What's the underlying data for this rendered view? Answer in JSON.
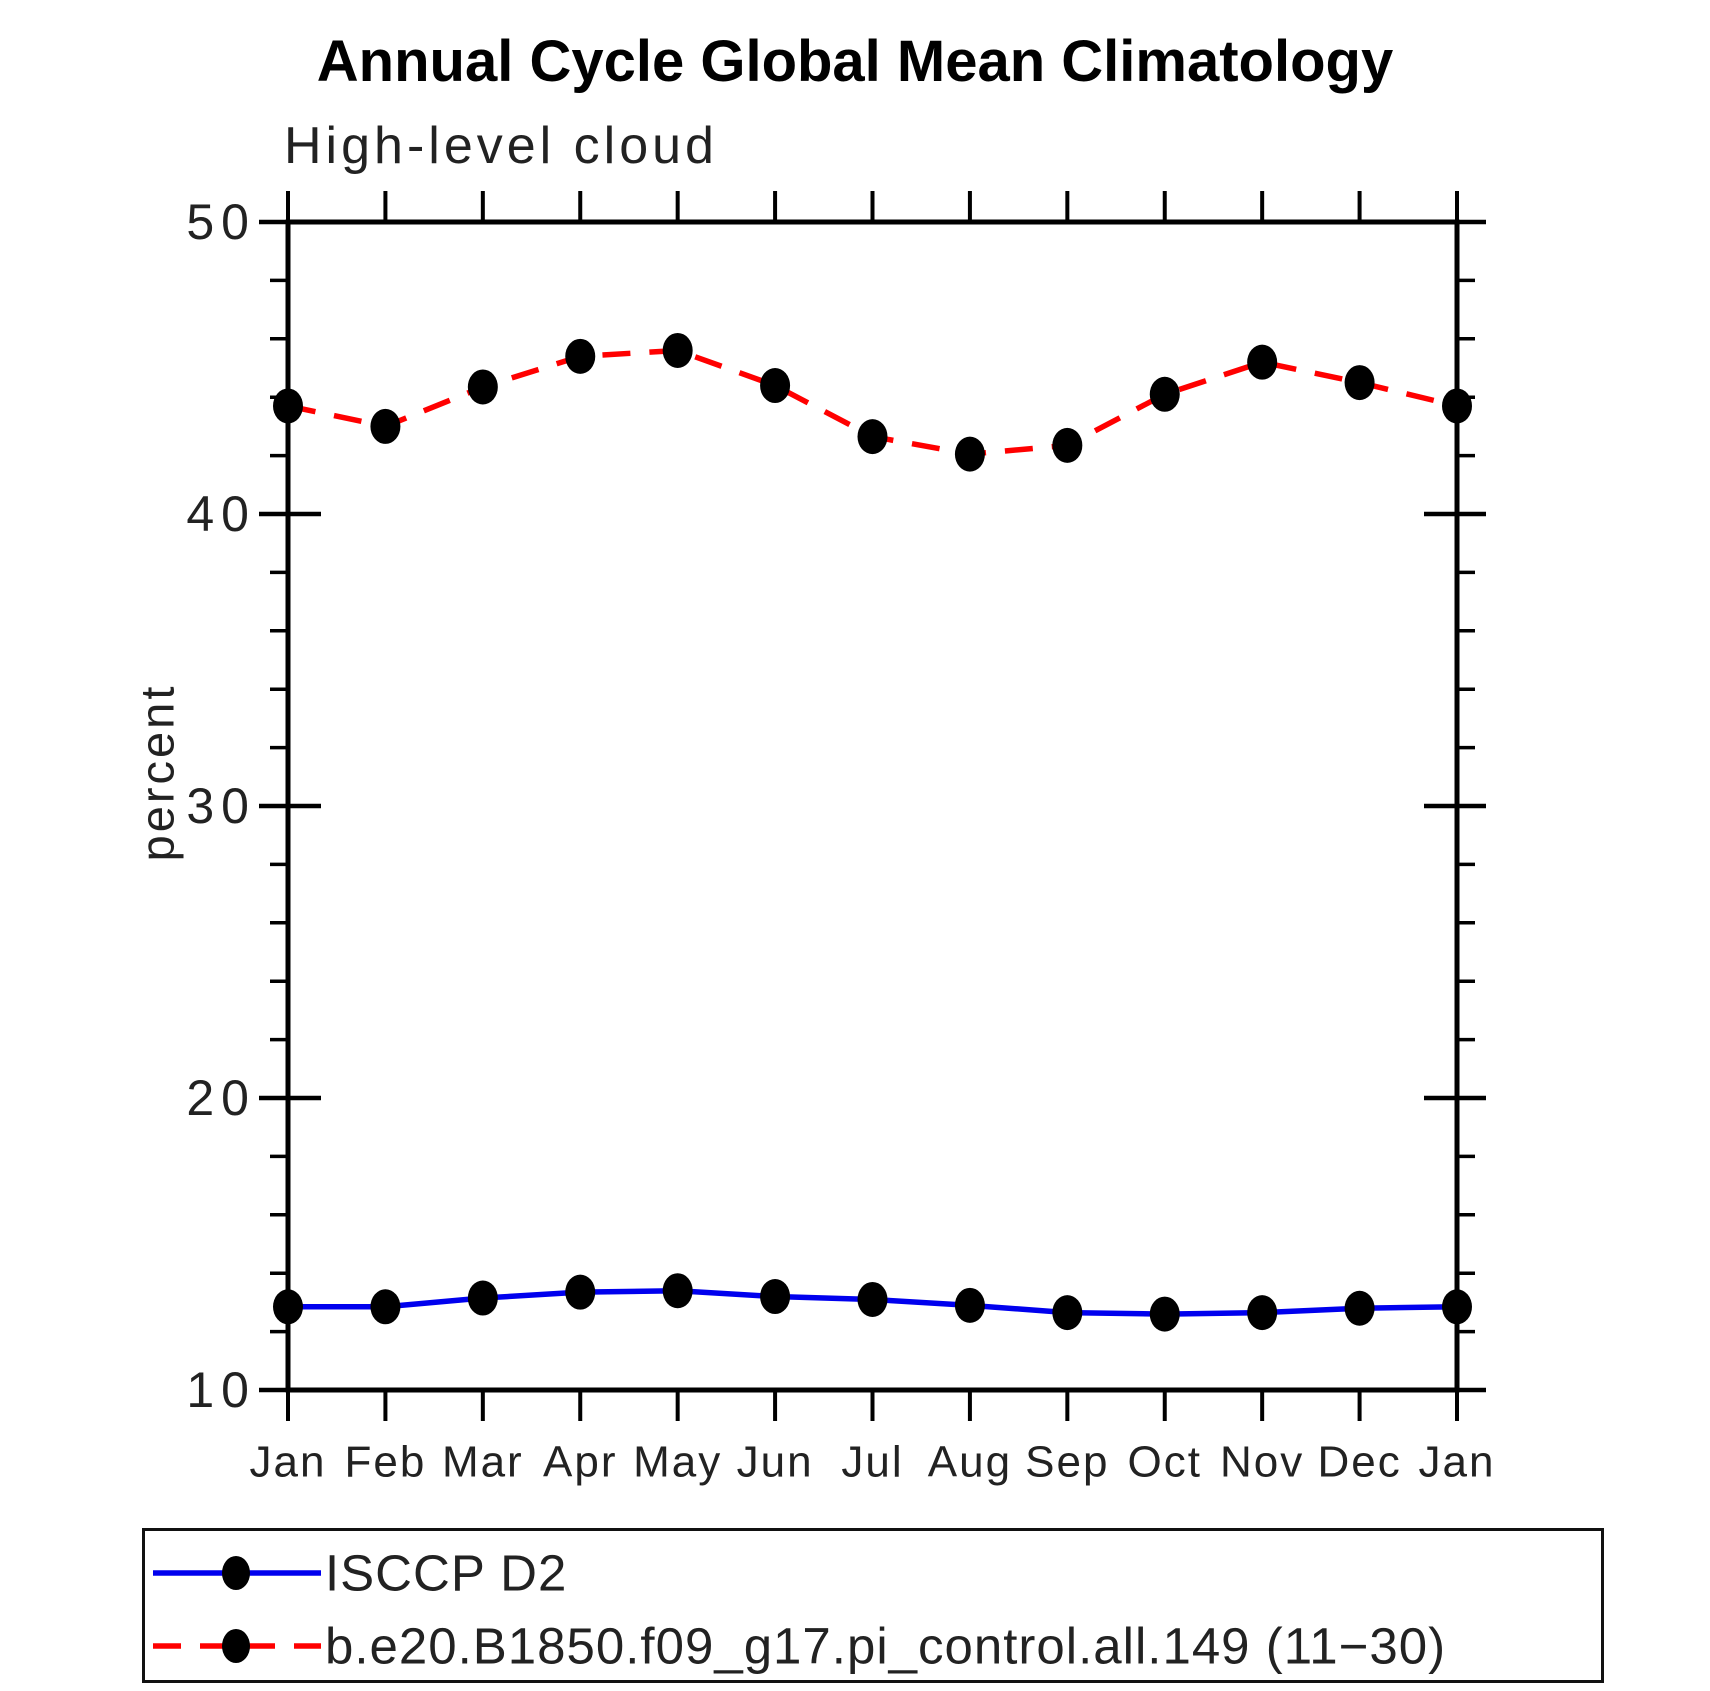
{
  "chart_data": {
    "type": "line",
    "title": "Annual Cycle Global Mean Climatology",
    "subtitle": "High-level cloud",
    "xlabel": "",
    "ylabel": "percent",
    "x_tick_labels": [
      "Jan",
      "Feb",
      "Mar",
      "Apr",
      "May",
      "Jun",
      "Jul",
      "Aug",
      "Sep",
      "Oct",
      "Nov",
      "Dec",
      "Jan"
    ],
    "y_ticks": [
      50,
      40,
      30,
      20,
      10
    ],
    "y_minor_step": 2,
    "ylim": [
      10,
      50
    ],
    "grid": "off",
    "legend_position": "bottom",
    "marker": "filled-black-dot",
    "series": [
      {
        "name": "ISCCP D2",
        "color": "#0000ee",
        "line_style": "solid",
        "values": [
          12.85,
          12.85,
          13.15,
          13.35,
          13.4,
          13.2,
          13.1,
          12.9,
          12.65,
          12.6,
          12.65,
          12.8,
          12.85
        ]
      },
      {
        "name": "b.e20.B1850.f09_g17.pi_control.all.149 (11−30)",
        "color": "#ff0000",
        "line_style": "dashed",
        "values": [
          43.7,
          43.0,
          44.35,
          45.4,
          45.6,
          44.4,
          42.65,
          42.05,
          42.35,
          44.1,
          45.2,
          44.5,
          43.7
        ]
      }
    ],
    "colors": {
      "axis": "#000000",
      "marker": "#000000",
      "obs_line": "#0000ee",
      "model_line": "#ff0000"
    }
  }
}
